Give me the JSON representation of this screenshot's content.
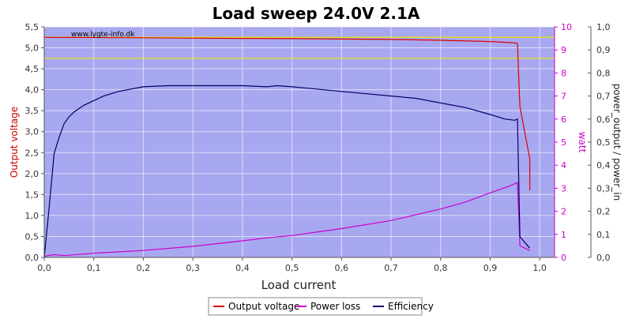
{
  "chart_data": {
    "type": "line",
    "title": "Load sweep 24.0V 2.1A",
    "xlabel": "Load current",
    "xlim": [
      0,
      1.03
    ],
    "xticks": [
      "0,0",
      "0,1",
      "0,2",
      "0,3",
      "0,4",
      "0,5",
      "0,6",
      "0,7",
      "0,8",
      "0,9",
      "1,0"
    ],
    "watermark": "www.lygte-info.dk",
    "axes": {
      "left": {
        "label": "Output voltage",
        "lim": [
          0,
          5.5
        ],
        "color": "#dd0000",
        "ticks": [
          "0,0",
          "0,5",
          "1,0",
          "1,5",
          "2,0",
          "2,5",
          "3,0",
          "3,5",
          "4,0",
          "4,5",
          "5,0",
          "5,5"
        ]
      },
      "watt": {
        "label": "watt",
        "lim": [
          0,
          10
        ],
        "color": "#cc00cc",
        "ticks": [
          "0",
          "1",
          "2",
          "3",
          "4",
          "5",
          "6",
          "7",
          "8",
          "9",
          "10"
        ]
      },
      "right": {
        "label": "power_output / power_in",
        "lim": [
          0,
          1.0
        ],
        "color": "#222222",
        "ticks": [
          "0,0",
          "0,1",
          "0,2",
          "0,3",
          "0,4",
          "0,5",
          "0,6",
          "0,7",
          "0,8",
          "0,9",
          "1,0"
        ]
      }
    },
    "reference_lines": [
      {
        "axis": "left",
        "y": 5.25,
        "color": "#e8e800"
      },
      {
        "axis": "left",
        "y": 4.75,
        "color": "#e8e800"
      }
    ],
    "series": [
      {
        "name": "Output voltage",
        "axis": "left",
        "color": "#dd0000",
        "x": [
          0.0,
          0.2,
          0.3,
          0.5,
          0.7,
          0.8,
          0.9,
          0.95,
          0.955,
          0.96,
          0.98,
          0.98
        ],
        "y": [
          5.25,
          5.24,
          5.23,
          5.22,
          5.2,
          5.18,
          5.15,
          5.12,
          5.1,
          3.6,
          2.35,
          1.6
        ]
      },
      {
        "name": "Power loss",
        "axis": "watt",
        "color": "#cc00cc",
        "x": [
          0.0,
          0.02,
          0.04,
          0.1,
          0.2,
          0.3,
          0.4,
          0.45,
          0.5,
          0.55,
          0.6,
          0.7,
          0.8,
          0.85,
          0.9,
          0.94,
          0.955,
          0.96,
          0.98
        ],
        "y": [
          0.05,
          0.12,
          0.08,
          0.18,
          0.3,
          0.48,
          0.72,
          0.85,
          0.95,
          1.1,
          1.25,
          1.6,
          2.1,
          2.4,
          2.8,
          3.1,
          3.25,
          0.5,
          0.3
        ]
      },
      {
        "name": "Efficiency",
        "axis": "right",
        "color": "#000066",
        "x": [
          0.0,
          0.01,
          0.02,
          0.03,
          0.04,
          0.05,
          0.06,
          0.08,
          0.1,
          0.12,
          0.15,
          0.2,
          0.25,
          0.3,
          0.35,
          0.4,
          0.45,
          0.47,
          0.5,
          0.55,
          0.6,
          0.65,
          0.7,
          0.75,
          0.8,
          0.85,
          0.9,
          0.93,
          0.95,
          0.955,
          0.96,
          0.98
        ],
        "y": [
          0.0,
          0.22,
          0.45,
          0.52,
          0.58,
          0.61,
          0.63,
          0.66,
          0.68,
          0.7,
          0.72,
          0.74,
          0.745,
          0.745,
          0.745,
          0.745,
          0.74,
          0.745,
          0.74,
          0.73,
          0.72,
          0.71,
          0.7,
          0.69,
          0.67,
          0.65,
          0.62,
          0.6,
          0.595,
          0.6,
          0.09,
          0.04
        ]
      }
    ],
    "legend": {
      "position": "bottom-center",
      "entries": [
        "Output voltage",
        "Power loss",
        "Efficiency"
      ]
    },
    "plot_bg": "#a8a8f0",
    "grid": true
  }
}
